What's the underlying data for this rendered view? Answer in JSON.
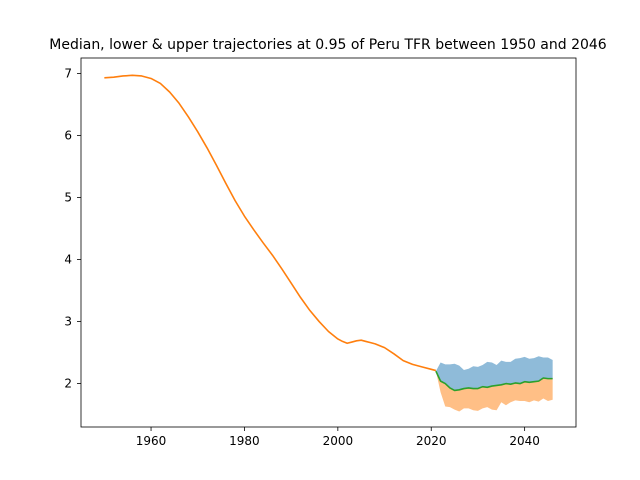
{
  "chart_data": {
    "type": "line",
    "title": "Median, lower & upper trajectories at 0.95 of Peru TFR between 1950 and 2046",
    "xlabel": "",
    "ylabel": "",
    "xlim": [
      1945,
      2051
    ],
    "ylim": [
      1.3,
      7.25
    ],
    "x_ticks": [
      1960,
      1980,
      2000,
      2020,
      2040
    ],
    "y_ticks": [
      2,
      3,
      4,
      5,
      6,
      7
    ],
    "grid": false,
    "legend": "none",
    "colors": {
      "historical": "#ff7f0e",
      "median": "#2ca02c",
      "upper_band": "#1f77b4",
      "lower_band": "#ff7f0e"
    },
    "series": [
      {
        "role": "historical",
        "x": [
          1950,
          1952,
          1954,
          1956,
          1958,
          1960,
          1962,
          1964,
          1966,
          1968,
          1970,
          1972,
          1974,
          1976,
          1978,
          1980,
          1982,
          1984,
          1986,
          1988,
          1990,
          1992,
          1994,
          1996,
          1998,
          2000,
          2001,
          2002,
          2003,
          2004,
          2005,
          2006,
          2007,
          2008,
          2010,
          2012,
          2014,
          2016,
          2018,
          2020,
          2021
        ],
        "y": [
          6.93,
          6.94,
          6.96,
          6.97,
          6.96,
          6.92,
          6.84,
          6.7,
          6.52,
          6.3,
          6.06,
          5.8,
          5.52,
          5.23,
          4.95,
          4.7,
          4.48,
          4.27,
          4.07,
          3.85,
          3.62,
          3.39,
          3.18,
          3.0,
          2.84,
          2.72,
          2.68,
          2.65,
          2.67,
          2.69,
          2.7,
          2.68,
          2.66,
          2.64,
          2.58,
          2.48,
          2.37,
          2.31,
          2.27,
          2.23,
          2.21
        ]
      },
      {
        "role": "median",
        "x": [
          2021,
          2022,
          2023,
          2024,
          2025,
          2026,
          2027,
          2028,
          2029,
          2030,
          2031,
          2032,
          2033,
          2034,
          2035,
          2036,
          2037,
          2038,
          2039,
          2040,
          2041,
          2042,
          2043,
          2044,
          2045,
          2046
        ],
        "y": [
          2.2,
          2.04,
          2.0,
          1.93,
          1.89,
          1.9,
          1.92,
          1.93,
          1.92,
          1.92,
          1.95,
          1.94,
          1.96,
          1.97,
          1.98,
          2.0,
          1.99,
          2.01,
          2.0,
          2.03,
          2.02,
          2.03,
          2.04,
          2.09,
          2.08,
          2.08
        ]
      },
      {
        "role": "upper",
        "x": [
          2021,
          2022,
          2023,
          2024,
          2025,
          2026,
          2027,
          2028,
          2029,
          2030,
          2031,
          2032,
          2033,
          2034,
          2035,
          2036,
          2037,
          2038,
          2039,
          2040,
          2041,
          2042,
          2043,
          2044,
          2045,
          2046
        ],
        "y": [
          2.2,
          2.34,
          2.31,
          2.31,
          2.32,
          2.29,
          2.22,
          2.24,
          2.28,
          2.27,
          2.3,
          2.35,
          2.34,
          2.3,
          2.37,
          2.35,
          2.35,
          2.4,
          2.41,
          2.43,
          2.4,
          2.41,
          2.44,
          2.42,
          2.42,
          2.38
        ]
      },
      {
        "role": "lower",
        "x": [
          2021,
          2022,
          2023,
          2024,
          2025,
          2026,
          2027,
          2028,
          2029,
          2030,
          2031,
          2032,
          2033,
          2034,
          2035,
          2036,
          2037,
          2038,
          2039,
          2040,
          2041,
          2042,
          2043,
          2044,
          2045,
          2046
        ],
        "y": [
          2.2,
          1.86,
          1.63,
          1.62,
          1.58,
          1.55,
          1.6,
          1.6,
          1.57,
          1.56,
          1.6,
          1.62,
          1.58,
          1.57,
          1.7,
          1.65,
          1.7,
          1.73,
          1.72,
          1.72,
          1.7,
          1.73,
          1.71,
          1.76,
          1.72,
          1.74
        ]
      }
    ]
  }
}
